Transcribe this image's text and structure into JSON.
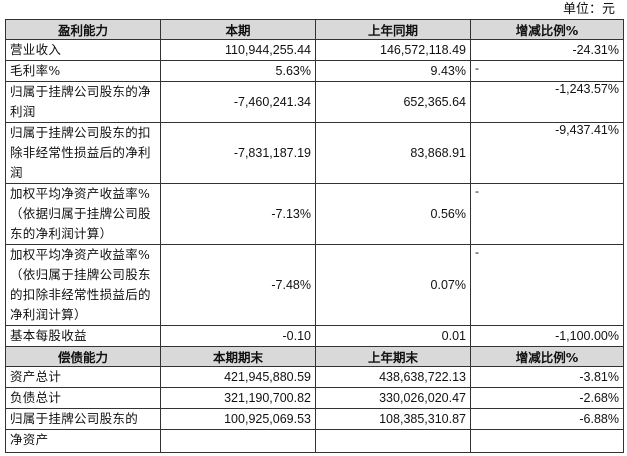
{
  "unit_label": "单位：元",
  "profit_header": [
    "盈利能力",
    "本期",
    "上年同期",
    "增减比例%"
  ],
  "profit_rows": [
    {
      "label": "营业收入",
      "current": "110,944,255.44",
      "previous": "146,572,118.49",
      "change": "-24.31%"
    },
    {
      "label": "毛利率%",
      "current": "5.63%",
      "previous": "9.43%",
      "change": "-"
    },
    {
      "label": "归属于挂牌公司股东的净利润",
      "current": "-7,460,241.34",
      "previous": "652,365.64",
      "change": "-1,243.57%"
    },
    {
      "label": "归属于挂牌公司股东的扣除非经常性损益后的净利润",
      "current": "-7,831,187.19",
      "previous": "83,868.91",
      "change": "-9,437.41%"
    },
    {
      "label": "加权平均净资产收益率%（依据归属于挂牌公司股东的净利润计算）",
      "current": "-7.13%",
      "previous": "0.56%",
      "change": "-"
    },
    {
      "label": "加权平均净资产收益率%（依归属于挂牌公司股东的扣除非经常性损益后的净利润计算）",
      "current": "-7.48%",
      "previous": "0.07%",
      "change": "-"
    },
    {
      "label": "基本每股收益",
      "current": "-0.10",
      "previous": "0.01",
      "change": "-1,100.00%"
    }
  ],
  "solvency_header": [
    "偿债能力",
    "本期期末",
    "上年期末",
    "增减比例%"
  ],
  "solvency_rows": [
    {
      "label": "资产总计",
      "current": "421,945,880.59",
      "previous": "438,638,722.13",
      "change": "-3.81%"
    },
    {
      "label": "负债总计",
      "current": "321,190,700.82",
      "previous": "330,026,020.47",
      "change": "-2.68%"
    },
    {
      "label": "归属于挂牌公司股东的",
      "current": "100,925,069.53",
      "previous": "108,385,310.87",
      "change": "-6.88%"
    }
  ],
  "last_row_label": "净资产"
}
